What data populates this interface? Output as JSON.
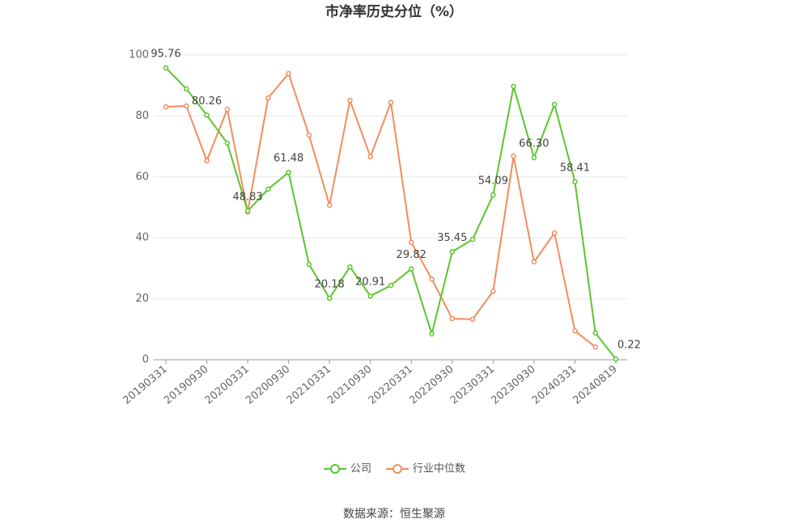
{
  "chart_data": {
    "type": "line",
    "title": "市净率历史分位（%）",
    "source": "数据来源：恒生聚源",
    "categories": [
      "20190331",
      null,
      "20190930",
      null,
      "20200331",
      null,
      "20200930",
      null,
      "20210331",
      null,
      "20210930",
      null,
      "20220331",
      null,
      "20220930",
      null,
      "20230331",
      null,
      "20230930",
      null,
      "20240331",
      null,
      "20240819"
    ],
    "series": [
      {
        "name": "公司",
        "color": "#5cc52c",
        "values": [
          95.76,
          88.9,
          80.26,
          71.1,
          48.83,
          56.0,
          61.48,
          31.3,
          20.18,
          30.5,
          20.91,
          24.4,
          29.82,
          8.5,
          35.45,
          39.5,
          54.09,
          89.7,
          66.3,
          83.8,
          58.41,
          8.8,
          0.22
        ],
        "value_labels": [
          "95.76",
          null,
          "80.26",
          null,
          "48.83",
          null,
          "61.48",
          null,
          "20.18",
          null,
          "20.91",
          null,
          "29.82",
          null,
          "35.45",
          null,
          "54.09",
          null,
          "66.30",
          null,
          "58.41",
          null,
          "0.22"
        ]
      },
      {
        "name": "行业中位数",
        "color": "#f28c5e",
        "values": [
          83.0,
          83.3,
          65.3,
          82.2,
          48.5,
          85.9,
          93.9,
          73.7,
          50.7,
          85.1,
          66.6,
          84.4,
          38.5,
          26.5,
          13.5,
          13.3,
          22.5,
          66.8,
          32.1,
          41.6,
          9.5,
          4.2,
          null
        ]
      }
    ],
    "ylim": [
      0,
      100
    ],
    "yticks": [
      0,
      20,
      40,
      60,
      80,
      100
    ],
    "grid": true
  }
}
